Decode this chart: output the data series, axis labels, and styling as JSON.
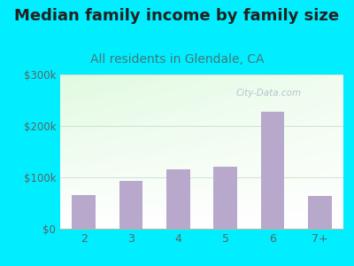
{
  "title": "Median family income by family size",
  "subtitle": "All residents in Glendale, CA",
  "categories": [
    "2",
    "3",
    "4",
    "5",
    "6",
    "7+"
  ],
  "values": [
    65000,
    93000,
    115000,
    120000,
    228000,
    63000
  ],
  "bar_color": "#b8a8cc",
  "bar_edge_color": "#b8a8cc",
  "ylim": [
    0,
    300000
  ],
  "yticks": [
    0,
    100000,
    200000,
    300000
  ],
  "ytick_labels": [
    "$0",
    "$100k",
    "$200k",
    "$300k"
  ],
  "background_outer": "#00eeff",
  "background_inner_top_left": "#d8f0d8",
  "background_inner_bottom": "#f8fff8",
  "background_inner_right": "#e8f8ff",
  "title_fontsize": 13,
  "subtitle_fontsize": 10,
  "title_color": "#222222",
  "subtitle_color": "#447777",
  "tick_color": "#556666",
  "watermark": "City-Data.com"
}
